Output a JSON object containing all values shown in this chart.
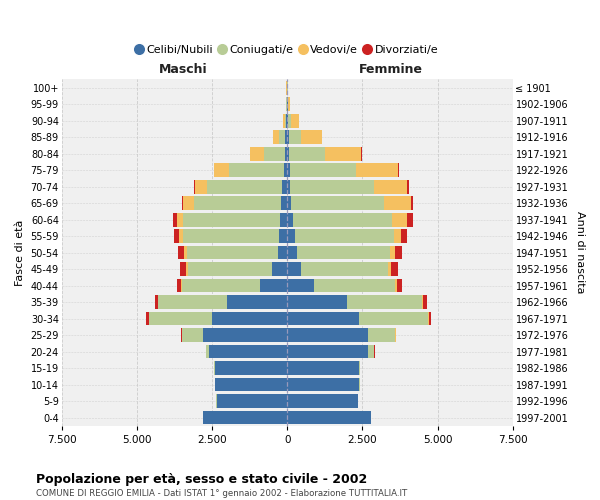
{
  "age_groups": [
    "0-4",
    "5-9",
    "10-14",
    "15-19",
    "20-24",
    "25-29",
    "30-34",
    "35-39",
    "40-44",
    "45-49",
    "50-54",
    "55-59",
    "60-64",
    "65-69",
    "70-74",
    "75-79",
    "80-84",
    "85-89",
    "90-94",
    "95-99",
    "100+"
  ],
  "birth_years": [
    "1997-2001",
    "1992-1996",
    "1987-1991",
    "1982-1986",
    "1977-1981",
    "1972-1976",
    "1967-1971",
    "1962-1966",
    "1957-1961",
    "1952-1956",
    "1947-1951",
    "1942-1946",
    "1937-1941",
    "1932-1936",
    "1927-1931",
    "1922-1926",
    "1917-1921",
    "1912-1916",
    "1907-1911",
    "1902-1906",
    "≤ 1901"
  ],
  "male_celibi": [
    2800,
    2350,
    2400,
    2400,
    2600,
    2800,
    2500,
    2000,
    900,
    500,
    320,
    280,
    250,
    200,
    170,
    120,
    80,
    60,
    30,
    20,
    10
  ],
  "male_coniugati": [
    2,
    5,
    10,
    20,
    100,
    700,
    2100,
    2300,
    2600,
    2800,
    3000,
    3200,
    3200,
    2900,
    2500,
    1800,
    700,
    200,
    50,
    20,
    10
  ],
  "male_vedovi": [
    0,
    0,
    0,
    0,
    0,
    2,
    5,
    10,
    30,
    60,
    100,
    120,
    200,
    350,
    400,
    500,
    450,
    200,
    50,
    10,
    5
  ],
  "male_divorziati": [
    0,
    0,
    0,
    0,
    5,
    20,
    80,
    100,
    150,
    220,
    200,
    180,
    150,
    40,
    30,
    30,
    20,
    20,
    10,
    5,
    2
  ],
  "female_nubili": [
    2800,
    2350,
    2400,
    2400,
    2700,
    2700,
    2400,
    2000,
    900,
    450,
    310,
    250,
    200,
    130,
    100,
    80,
    60,
    50,
    30,
    20,
    10
  ],
  "female_coniugate": [
    2,
    5,
    10,
    30,
    200,
    900,
    2300,
    2500,
    2700,
    2900,
    3100,
    3300,
    3300,
    3100,
    2800,
    2200,
    1200,
    400,
    100,
    20,
    15
  ],
  "female_vedove": [
    0,
    0,
    0,
    0,
    0,
    5,
    10,
    20,
    60,
    100,
    180,
    250,
    500,
    900,
    1100,
    1400,
    1200,
    700,
    250,
    50,
    15
  ],
  "female_divorziate": [
    0,
    0,
    0,
    0,
    5,
    20,
    80,
    120,
    150,
    220,
    220,
    200,
    200,
    60,
    40,
    30,
    25,
    15,
    10,
    5,
    2
  ],
  "colors_celibi": "#3d6fa5",
  "colors_coniugati": "#b8cc96",
  "colors_vedovi": "#f5c060",
  "colors_divorziati": "#cc2222",
  "xlim": 7500,
  "xticks": [
    -7500,
    -5000,
    -2500,
    0,
    2500,
    5000,
    7500
  ],
  "xticklabels": [
    "7.500",
    "5.000",
    "2.500",
    "0",
    "2.500",
    "5.000",
    "7.500"
  ],
  "title": "Popolazione per età, sesso e stato civile - 2002",
  "subtitle": "COMUNE DI REGGIO EMILIA - Dati ISTAT 1° gennaio 2002 - Elaborazione TUTTITALIA.IT",
  "maschi_label": "Maschi",
  "femmine_label": "Femmine",
  "ylabel_left": "Fasce di età",
  "ylabel_right": "Anni di nascita",
  "legend_labels": [
    "Celibi/Nubili",
    "Coniugati/e",
    "Vedovi/e",
    "Divorziati/e"
  ],
  "bg_color": "#ffffff",
  "plot_bg": "#f0f0f0",
  "grid_color": "#cccccc"
}
